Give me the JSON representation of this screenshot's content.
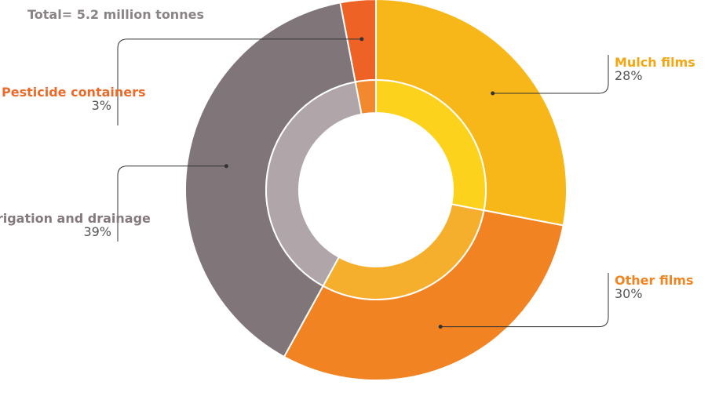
{
  "chart_data": {
    "type": "pie",
    "subtitle": "Total= 5.2 million tonnes",
    "slices": [
      {
        "label": "Mulch films",
        "value_label": "28%",
        "value": 28,
        "color": "#f8b719",
        "inner_color": "#fcd21c",
        "label_color": "#f3a712"
      },
      {
        "label": "Other films",
        "value_label": "30%",
        "value": 30,
        "color": "#f28322",
        "inner_color": "#f6af2c",
        "label_color": "#ef8522"
      },
      {
        "label": "Irrigation and drainage",
        "value_label": "39%",
        "value": 39,
        "color": "#80767a",
        "inner_color": "#b0a6a9",
        "label_color": "#85797d"
      },
      {
        "label": "Pesticide containers",
        "value_label": "3%",
        "value": 3,
        "color": "#ee6225",
        "inner_color": "#f3892e",
        "label_color": "#ea6a2a"
      }
    ]
  }
}
